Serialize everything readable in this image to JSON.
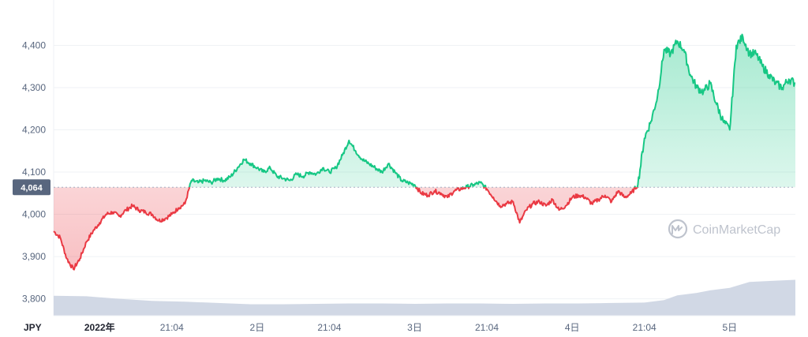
{
  "chart_data": {
    "type": "line",
    "currency_label": "JPY",
    "reference_value": 4064,
    "reference_label": "4,064",
    "ylim": [
      3760,
      4470
    ],
    "y_ticks": [
      {
        "value": 3800,
        "label": "3,800"
      },
      {
        "value": 3900,
        "label": "3,900"
      },
      {
        "value": 4000,
        "label": "4,000"
      },
      {
        "value": 4100,
        "label": "4,100"
      },
      {
        "value": 4200,
        "label": "4,200"
      },
      {
        "value": 4300,
        "label": "4,300"
      },
      {
        "value": 4400,
        "label": "4,400"
      }
    ],
    "x_range": [
      0,
      113
    ],
    "x_ticks": [
      {
        "t": 7,
        "label": "2022年",
        "bold": true
      },
      {
        "t": 18,
        "label": "21:04",
        "bold": false
      },
      {
        "t": 31,
        "label": "2日",
        "bold": false
      },
      {
        "t": 42,
        "label": "21:04",
        "bold": false
      },
      {
        "t": 55,
        "label": "3日",
        "bold": false
      },
      {
        "t": 66,
        "label": "21:04",
        "bold": false
      },
      {
        "t": 79,
        "label": "4日",
        "bold": false
      },
      {
        "t": 90,
        "label": "21:04",
        "bold": false
      },
      {
        "t": 103,
        "label": "5日",
        "bold": false
      }
    ],
    "colors": {
      "up": "#16c784",
      "down": "#ea3943",
      "volume": "#cfd6e4",
      "grid": "#eff2f5",
      "reference": "#a6b0c3",
      "reference_badge": "#58667e"
    },
    "price": [
      [
        0,
        3960
      ],
      [
        1,
        3945
      ],
      [
        2,
        3895
      ],
      [
        3,
        3870
      ],
      [
        4,
        3895
      ],
      [
        5,
        3935
      ],
      [
        6,
        3960
      ],
      [
        7,
        3980
      ],
      [
        8,
        4000
      ],
      [
        9,
        4005
      ],
      [
        10,
        3995
      ],
      [
        11,
        4010
      ],
      [
        12,
        4020
      ],
      [
        13,
        4010
      ],
      [
        14,
        4005
      ],
      [
        15,
        4000
      ],
      [
        16,
        3985
      ],
      [
        17,
        3990
      ],
      [
        18,
        4000
      ],
      [
        19,
        4015
      ],
      [
        20,
        4025
      ],
      [
        21,
        4080
      ],
      [
        22,
        4075
      ],
      [
        23,
        4080
      ],
      [
        24,
        4075
      ],
      [
        25,
        4085
      ],
      [
        26,
        4080
      ],
      [
        27,
        4090
      ],
      [
        28,
        4110
      ],
      [
        29,
        4130
      ],
      [
        30,
        4120
      ],
      [
        31,
        4110
      ],
      [
        32,
        4100
      ],
      [
        33,
        4110
      ],
      [
        34,
        4090
      ],
      [
        35,
        4085
      ],
      [
        36,
        4080
      ],
      [
        37,
        4095
      ],
      [
        38,
        4090
      ],
      [
        39,
        4100
      ],
      [
        40,
        4095
      ],
      [
        41,
        4110
      ],
      [
        42,
        4100
      ],
      [
        43,
        4110
      ],
      [
        44,
        4140
      ],
      [
        45,
        4175
      ],
      [
        46,
        4150
      ],
      [
        47,
        4130
      ],
      [
        48,
        4120
      ],
      [
        49,
        4110
      ],
      [
        50,
        4100
      ],
      [
        51,
        4120
      ],
      [
        52,
        4100
      ],
      [
        53,
        4080
      ],
      [
        54,
        4075
      ],
      [
        55,
        4070
      ],
      [
        56,
        4050
      ],
      [
        57,
        4045
      ],
      [
        58,
        4055
      ],
      [
        59,
        4050
      ],
      [
        60,
        4040
      ],
      [
        61,
        4055
      ],
      [
        62,
        4060
      ],
      [
        63,
        4065
      ],
      [
        64,
        4070
      ],
      [
        65,
        4075
      ],
      [
        66,
        4060
      ],
      [
        67,
        4040
      ],
      [
        68,
        4020
      ],
      [
        69,
        4025
      ],
      [
        70,
        4030
      ],
      [
        71,
        3980
      ],
      [
        72,
        4010
      ],
      [
        73,
        4025
      ],
      [
        74,
        4030
      ],
      [
        75,
        4020
      ],
      [
        76,
        4035
      ],
      [
        77,
        4010
      ],
      [
        78,
        4020
      ],
      [
        79,
        4040
      ],
      [
        80,
        4045
      ],
      [
        81,
        4040
      ],
      [
        82,
        4025
      ],
      [
        83,
        4035
      ],
      [
        84,
        4045
      ],
      [
        85,
        4030
      ],
      [
        86,
        4055
      ],
      [
        87,
        4040
      ],
      [
        88,
        4050
      ],
      [
        89,
        4070
      ],
      [
        90,
        4180
      ],
      [
        91,
        4220
      ],
      [
        92,
        4280
      ],
      [
        93,
        4390
      ],
      [
        94,
        4380
      ],
      [
        95,
        4410
      ],
      [
        96,
        4390
      ],
      [
        97,
        4330
      ],
      [
        98,
        4300
      ],
      [
        99,
        4290
      ],
      [
        100,
        4310
      ],
      [
        101,
        4260
      ],
      [
        102,
        4220
      ],
      [
        103,
        4200
      ],
      [
        104,
        4400
      ],
      [
        105,
        4420
      ],
      [
        106,
        4380
      ],
      [
        107,
        4380
      ],
      [
        108,
        4350
      ],
      [
        109,
        4330
      ],
      [
        110,
        4310
      ],
      [
        111,
        4300
      ],
      [
        112,
        4320
      ],
      [
        113,
        4310
      ]
    ],
    "volume": [
      [
        0,
        3807
      ],
      [
        5,
        3806
      ],
      [
        10,
        3800
      ],
      [
        15,
        3795
      ],
      [
        20,
        3793
      ],
      [
        25,
        3790
      ],
      [
        30,
        3787
      ],
      [
        35,
        3787
      ],
      [
        40,
        3788
      ],
      [
        45,
        3789
      ],
      [
        50,
        3789
      ],
      [
        55,
        3788
      ],
      [
        60,
        3789
      ],
      [
        65,
        3789
      ],
      [
        70,
        3788
      ],
      [
        75,
        3789
      ],
      [
        80,
        3789
      ],
      [
        85,
        3790
      ],
      [
        90,
        3791
      ],
      [
        93,
        3797
      ],
      [
        95,
        3808
      ],
      [
        98,
        3814
      ],
      [
        100,
        3820
      ],
      [
        103,
        3826
      ],
      [
        106,
        3840
      ],
      [
        110,
        3843
      ],
      [
        113,
        3845
      ]
    ]
  },
  "watermark": {
    "icon": "coinmarketcap-logo-icon",
    "text": "CoinMarketCap"
  }
}
